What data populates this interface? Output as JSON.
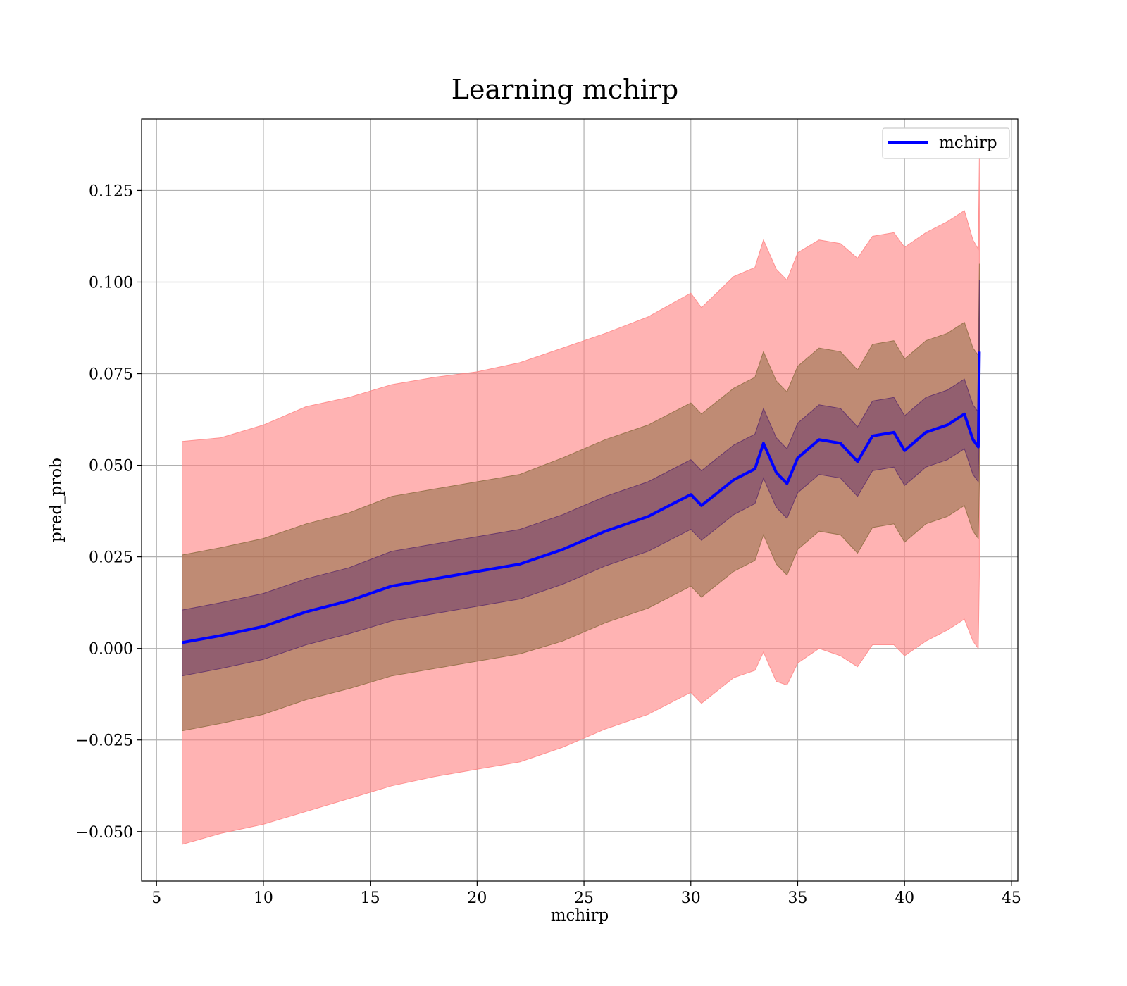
{
  "chart_data": {
    "type": "line",
    "title": "Learning mchirp",
    "xlabel": "mchirp",
    "ylabel": "pred_prob",
    "xlim": [
      4.3,
      45.3
    ],
    "ylim": [
      -0.0635,
      0.1445
    ],
    "xticks": [
      5,
      10,
      15,
      20,
      25,
      30,
      35,
      40,
      45
    ],
    "xtick_labels": [
      "5",
      "10",
      "15",
      "20",
      "25",
      "30",
      "35",
      "40",
      "45"
    ],
    "yticks": [
      -0.05,
      -0.025,
      0.0,
      0.025,
      0.05,
      0.075,
      0.1,
      0.125
    ],
    "ytick_labels": [
      "−0.050",
      "−0.025",
      "0.000",
      "0.025",
      "0.050",
      "0.075",
      "0.100",
      "0.125"
    ],
    "grid": true,
    "legend": {
      "position": "top-right",
      "entries": [
        "mchirp"
      ]
    },
    "colors": {
      "line": "#0000ff",
      "band_outer": "#ff8080",
      "band_middle": "#8b6a3f",
      "band_inner": "#5a2a6a"
    },
    "series": [
      {
        "name": "mchirp",
        "x": [
          6.2,
          8,
          10,
          12,
          14,
          16,
          18,
          20,
          22,
          24,
          26,
          28,
          30,
          30.5,
          32,
          33,
          33.4,
          34,
          34.5,
          35,
          36,
          37,
          37.8,
          38.5,
          39.5,
          40,
          41,
          42,
          42.8,
          43.2,
          43.45,
          43.5
        ],
        "values": [
          0.0016,
          0.0035,
          0.006,
          0.01,
          0.013,
          0.017,
          0.019,
          0.021,
          0.023,
          0.027,
          0.032,
          0.036,
          0.042,
          0.039,
          0.046,
          0.049,
          0.056,
          0.048,
          0.045,
          0.052,
          0.057,
          0.056,
          0.051,
          0.058,
          0.059,
          0.054,
          0.059,
          0.061,
          0.064,
          0.057,
          0.055,
          0.081
        ]
      }
    ],
    "bands": [
      {
        "label": "outer",
        "x": [
          6.2,
          8,
          10,
          12,
          14,
          16,
          18,
          20,
          22,
          24,
          26,
          28,
          30,
          30.5,
          32,
          33,
          33.4,
          34,
          34.5,
          35,
          36,
          37,
          37.8,
          38.5,
          39.5,
          40,
          41,
          42,
          42.8,
          43.2,
          43.45,
          43.5
        ],
        "lower": [
          -0.0535,
          -0.0505,
          -0.048,
          -0.0445,
          -0.041,
          -0.0375,
          -0.035,
          -0.033,
          -0.031,
          -0.027,
          -0.022,
          -0.018,
          -0.012,
          -0.015,
          -0.008,
          -0.006,
          -0.001,
          -0.009,
          -0.01,
          -0.004,
          0.0,
          -0.002,
          -0.005,
          0.001,
          0.001,
          -0.002,
          0.002,
          0.005,
          0.008,
          0.002,
          0.0,
          0.02
        ],
        "upper": [
          0.0565,
          0.0575,
          0.061,
          0.066,
          0.0685,
          0.072,
          0.074,
          0.0755,
          0.078,
          0.082,
          0.086,
          0.0905,
          0.097,
          0.093,
          0.1015,
          0.104,
          0.1115,
          0.1035,
          0.1005,
          0.108,
          0.1115,
          0.1105,
          0.1065,
          0.1125,
          0.1135,
          0.1095,
          0.1135,
          0.1165,
          0.1195,
          0.1115,
          0.109,
          0.1345
        ]
      },
      {
        "label": "middle",
        "x": [
          6.2,
          8,
          10,
          12,
          14,
          16,
          18,
          20,
          22,
          24,
          26,
          28,
          30,
          30.5,
          32,
          33,
          33.4,
          34,
          34.5,
          35,
          36,
          37,
          37.8,
          38.5,
          39.5,
          40,
          41,
          42,
          42.8,
          43.2,
          43.45,
          43.5
        ],
        "lower": [
          -0.0225,
          -0.0205,
          -0.018,
          -0.014,
          -0.011,
          -0.0075,
          -0.0055,
          -0.0035,
          -0.0015,
          0.002,
          0.007,
          0.011,
          0.017,
          0.014,
          0.021,
          0.024,
          0.031,
          0.023,
          0.02,
          0.027,
          0.032,
          0.031,
          0.026,
          0.033,
          0.034,
          0.029,
          0.034,
          0.036,
          0.039,
          0.032,
          0.03,
          0.045
        ],
        "upper": [
          0.0255,
          0.0275,
          0.03,
          0.034,
          0.037,
          0.0415,
          0.0435,
          0.0455,
          0.0475,
          0.052,
          0.057,
          0.061,
          0.067,
          0.064,
          0.071,
          0.074,
          0.081,
          0.073,
          0.07,
          0.077,
          0.082,
          0.081,
          0.076,
          0.083,
          0.084,
          0.079,
          0.084,
          0.086,
          0.089,
          0.082,
          0.08,
          0.105
        ]
      },
      {
        "label": "inner",
        "x": [
          6.2,
          8,
          10,
          12,
          14,
          16,
          18,
          20,
          22,
          24,
          26,
          28,
          30,
          30.5,
          32,
          33,
          33.4,
          34,
          34.5,
          35,
          36,
          37,
          37.8,
          38.5,
          39.5,
          40,
          41,
          42,
          42.8,
          43.2,
          43.45,
          43.5
        ],
        "lower": [
          -0.0075,
          -0.0055,
          -0.003,
          0.001,
          0.004,
          0.0075,
          0.0095,
          0.0115,
          0.0135,
          0.0175,
          0.0225,
          0.0265,
          0.0325,
          0.0295,
          0.0365,
          0.0395,
          0.0465,
          0.0385,
          0.0355,
          0.0425,
          0.0475,
          0.0465,
          0.0415,
          0.0485,
          0.0495,
          0.0445,
          0.0495,
          0.0515,
          0.0545,
          0.0475,
          0.0455,
          0.0615
        ],
        "upper": [
          0.0105,
          0.0125,
          0.015,
          0.019,
          0.022,
          0.0265,
          0.0285,
          0.0305,
          0.0325,
          0.0365,
          0.0415,
          0.0455,
          0.0515,
          0.0485,
          0.0555,
          0.0585,
          0.0655,
          0.0575,
          0.0545,
          0.0615,
          0.0665,
          0.0655,
          0.0605,
          0.0675,
          0.0685,
          0.0635,
          0.0685,
          0.0705,
          0.0735,
          0.0665,
          0.0645,
          0.1005
        ]
      }
    ]
  }
}
